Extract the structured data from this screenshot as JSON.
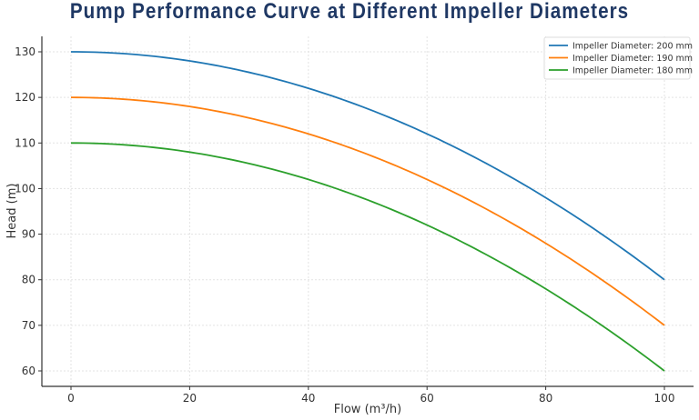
{
  "chart_data": {
    "type": "line",
    "title": "Pump Performance Curve at Different Impeller Diameters",
    "xlabel": "Flow (m³/h)",
    "ylabel": "Head (m)",
    "xlim": [
      -5,
      105
    ],
    "ylim": [
      56.5,
      133.5
    ],
    "xticks": [
      0,
      20,
      40,
      60,
      80,
      100
    ],
    "yticks": [
      60,
      70,
      80,
      90,
      100,
      110,
      120,
      130
    ],
    "grid": true,
    "legend_position": "upper right",
    "x": [
      0,
      10,
      20,
      30,
      40,
      50,
      60,
      70,
      80,
      90,
      100
    ],
    "series": [
      {
        "name": "Impeller Diameter: 200 mm",
        "color": "#1f77b4",
        "values": [
          130,
          129.5,
          128,
          125.5,
          122,
          117.5,
          112,
          105.5,
          98,
          89.5,
          80
        ]
      },
      {
        "name": "Impeller Diameter: 190 mm",
        "color": "#ff7f0e",
        "values": [
          120,
          119.5,
          118,
          115.5,
          112,
          107.5,
          102,
          95.5,
          88,
          79.5,
          70
        ]
      },
      {
        "name": "Impeller Diameter: 180 mm",
        "color": "#2ca02c",
        "values": [
          110,
          109.5,
          108,
          105.5,
          102,
          97.5,
          92,
          85.5,
          78,
          69.5,
          60
        ]
      }
    ]
  }
}
